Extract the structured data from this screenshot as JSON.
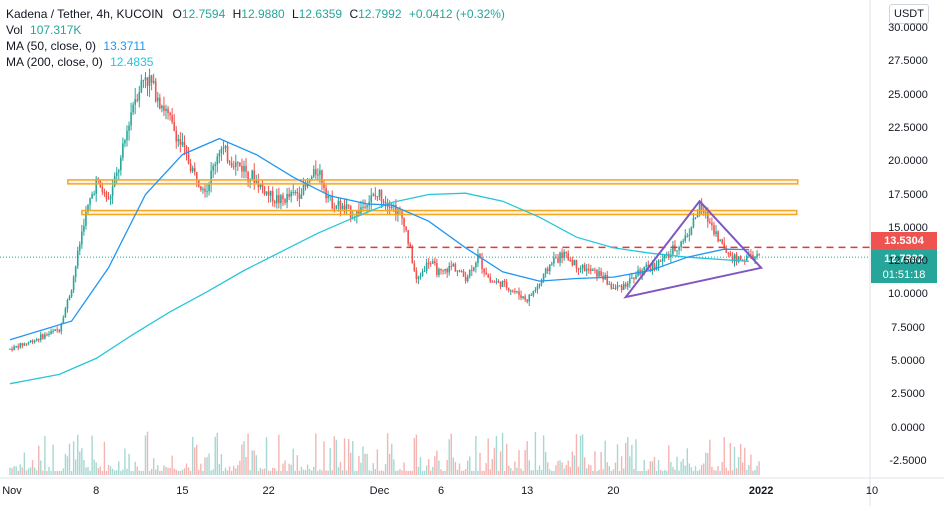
{
  "legend": {
    "symbol": "Kadena / Tether, 4h, KUCOIN",
    "o_label": "O",
    "o_value": "12.7594",
    "h_label": "H",
    "h_value": "12.9880",
    "l_label": "L",
    "l_value": "12.6359",
    "c_label": "C",
    "c_value": "12.7992",
    "change": "+0.0412 (+0.32%)",
    "vol_label": "Vol",
    "vol_value": "107.317K",
    "ma50_label": "MA (50, close, 0)",
    "ma50_value": "13.3711",
    "ma200_label": "MA (200, close, 0)",
    "ma200_value": "12.4835"
  },
  "currency": "USDT",
  "price_tags": {
    "level": "13.5304",
    "last": "12.7992",
    "countdown": "01:51:18"
  },
  "colors": {
    "up": "#26a69a",
    "down": "#ef5350",
    "ma50": "#2196f3",
    "ma200": "#26c6da",
    "zone": "#f5a623",
    "triangle": "#7e57c2",
    "level": "#e53935",
    "last": "#26a69a"
  },
  "chart_data": {
    "type": "candlestick",
    "title": "Kadena / Tether, 4h, KUCOIN",
    "ylim": [
      -2.5,
      30.0
    ],
    "yticks": [
      "30.0000",
      "27.5000",
      "25.0000",
      "22.5000",
      "20.0000",
      "17.5000",
      "15.0000",
      "12.5000",
      "10.0000",
      "7.5000",
      "5.0000",
      "2.5000",
      "0.0000",
      "-2.5000"
    ],
    "xticks": [
      "Nov",
      "8",
      "15",
      "22",
      "Dec",
      "6",
      "13",
      "20",
      "2022",
      "10"
    ],
    "price_path": [
      [
        "Nov 1",
        5.9
      ],
      [
        "Nov 3",
        6.6
      ],
      [
        "Nov 5",
        7.4
      ],
      [
        "Nov 6",
        10.5
      ],
      [
        "Nov 7",
        15.5
      ],
      [
        "Nov 8",
        18.5
      ],
      [
        "Nov 9",
        17.0
      ],
      [
        "Nov 10",
        20.0
      ],
      [
        "Nov 11",
        24.5
      ],
      [
        "Nov 12",
        26.5
      ],
      [
        "Nov 13",
        25.0
      ],
      [
        "Nov 14",
        23.0
      ],
      [
        "Nov 15",
        21.0
      ],
      [
        "Nov 16",
        19.0
      ],
      [
        "Nov 17",
        18.0
      ],
      [
        "Nov 18",
        21.0
      ],
      [
        "Nov 19",
        20.0
      ],
      [
        "Nov 20",
        19.5
      ],
      [
        "Nov 21",
        18.5
      ],
      [
        "Nov 22",
        17.5
      ],
      [
        "Nov 23",
        17.0
      ],
      [
        "Nov 24",
        17.5
      ],
      [
        "Nov 25",
        18.0
      ],
      [
        "Nov 26",
        19.5
      ],
      [
        "Nov 27",
        17.0
      ],
      [
        "Nov 28",
        16.5
      ],
      [
        "Nov 29",
        16.0
      ],
      [
        "Nov 30",
        17.0
      ],
      [
        "Dec 1",
        17.5
      ],
      [
        "Dec 2",
        16.8
      ],
      [
        "Dec 3",
        15.5
      ],
      [
        "Dec 4",
        11.0
      ],
      [
        "Dec 5",
        12.5
      ],
      [
        "Dec 6",
        11.5
      ],
      [
        "Dec 7",
        12.2
      ],
      [
        "Dec 8",
        11.2
      ],
      [
        "Dec 9",
        12.8
      ],
      [
        "Dec 10",
        11.0
      ],
      [
        "Dec 11",
        10.8
      ],
      [
        "Dec 12",
        10.2
      ],
      [
        "Dec 13",
        9.6
      ],
      [
        "Dec 14",
        10.8
      ],
      [
        "Dec 15",
        12.5
      ],
      [
        "Dec 16",
        13.0
      ],
      [
        "Dec 17",
        12.2
      ],
      [
        "Dec 18",
        11.8
      ],
      [
        "Dec 19",
        11.5
      ],
      [
        "Dec 20",
        10.4
      ],
      [
        "Dec 21",
        10.8
      ],
      [
        "Dec 22",
        11.6
      ],
      [
        "Dec 23",
        12.0
      ],
      [
        "Dec 24",
        12.6
      ],
      [
        "Dec 25",
        13.4
      ],
      [
        "Dec 26",
        14.5
      ],
      [
        "Dec 27",
        16.5
      ],
      [
        "Dec 28",
        15.2
      ],
      [
        "Dec 29",
        13.4
      ],
      [
        "Dec 30",
        12.6
      ],
      [
        "Dec 31",
        12.8
      ]
    ],
    "ma50_path": [
      [
        "Nov 1",
        6.6
      ],
      [
        "Nov 6",
        8.0
      ],
      [
        "Nov 9",
        12.0
      ],
      [
        "Nov 12",
        17.5
      ],
      [
        "Nov 15",
        20.5
      ],
      [
        "Nov 18",
        21.7
      ],
      [
        "Nov 21",
        20.5
      ],
      [
        "Nov 24",
        18.8
      ],
      [
        "Nov 27",
        17.4
      ],
      [
        "Nov 30",
        16.8
      ],
      [
        "Dec 2",
        16.7
      ],
      [
        "Dec 5",
        15.5
      ],
      [
        "Dec 8",
        13.5
      ],
      [
        "Dec 11",
        11.7
      ],
      [
        "Dec 14",
        11.0
      ],
      [
        "Dec 17",
        11.2
      ],
      [
        "Dec 20",
        11.3
      ],
      [
        "Dec 23",
        11.8
      ],
      [
        "Dec 26",
        12.8
      ],
      [
        "Dec 29",
        13.4
      ],
      [
        "Dec 31",
        13.37
      ]
    ],
    "ma200_path": [
      [
        "Nov 1",
        3.3
      ],
      [
        "Nov 5",
        4.0
      ],
      [
        "Nov 8",
        5.2
      ],
      [
        "Nov 11",
        7.0
      ],
      [
        "Nov 14",
        8.7
      ],
      [
        "Nov 17",
        10.2
      ],
      [
        "Nov 20",
        11.8
      ],
      [
        "Nov 23",
        13.2
      ],
      [
        "Nov 26",
        14.6
      ],
      [
        "Nov 29",
        15.8
      ],
      [
        "Dec 2",
        16.9
      ],
      [
        "Dec 5",
        17.5
      ],
      [
        "Dec 8",
        17.6
      ],
      [
        "Dec 11",
        17.0
      ],
      [
        "Dec 14",
        15.8
      ],
      [
        "Dec 17",
        14.3
      ],
      [
        "Dec 20",
        13.5
      ],
      [
        "Dec 23",
        13.1
      ],
      [
        "Dec 26",
        12.8
      ],
      [
        "Dec 31",
        12.48
      ]
    ],
    "annotations": {
      "upper_zone": [
        18.3,
        18.6
      ],
      "lower_zone": [
        16.0,
        16.3
      ],
      "level_line": 13.5304,
      "last_price": 12.7992,
      "triangle": [
        [
          "Dec 21",
          9.8
        ],
        [
          "Dec 27",
          17.0
        ],
        [
          "Jan 1",
          12.0
        ]
      ]
    }
  }
}
